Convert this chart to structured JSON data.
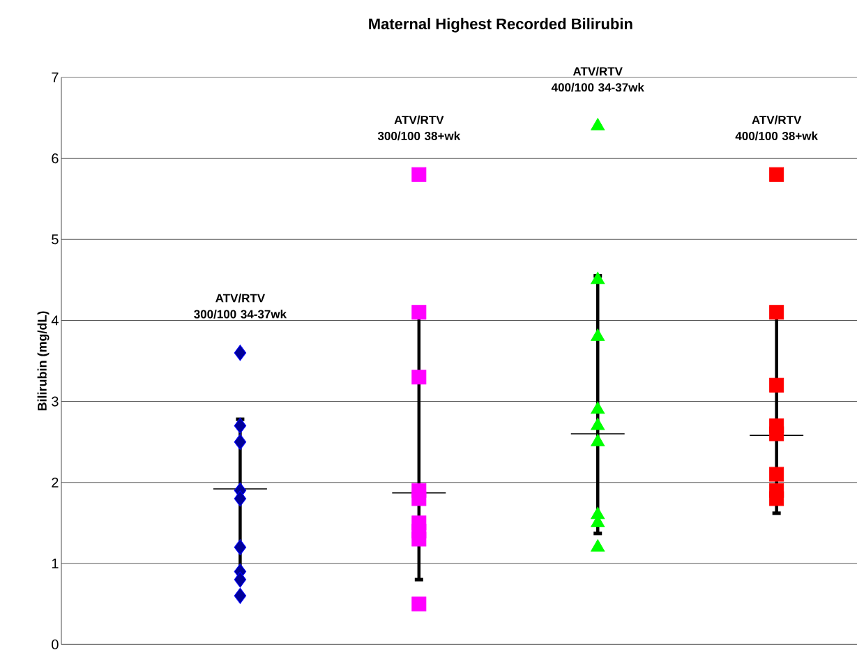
{
  "chart_data": {
    "type": "scatter",
    "title": "Maternal Highest Recorded Bilirubin",
    "ylabel": "Bilirubin (mg/dL)",
    "categories": [
      "ATV/RTV 300/100 34-37wk",
      "ATV/RTV 300/100 38+wk",
      "ATV/RTV 400/100 34-37wk",
      "ATV/RTV 400/100 38+wk"
    ],
    "series": [
      {
        "x": [
          "ATV/RTV 300/100 34-37wk",
          "ATV/RTV 300/100 34-37wk",
          "ATV/RTV 300/100 34-37wk",
          "ATV/RTV 300/100 34-37wk",
          "ATV/RTV 300/100 34-37wk",
          "ATV/RTV 300/100 34-37wk",
          "ATV/RTV 300/100 34-37wk",
          "ATV/RTV 300/100 34-37wk",
          "ATV/RTV 300/100 34-37wk"
        ],
        "values": [
          3.6,
          2.7,
          2.5,
          1.9,
          1.8,
          1.2,
          0.9,
          0.8,
          0.6
        ],
        "color": "#000099",
        "marker": "diamond"
      },
      {
        "x": [
          "ATV/RTV 300/100 38+wk",
          "ATV/RTV 300/100 38+wk",
          "ATV/RTV 300/100 38+wk",
          "ATV/RTV 300/100 38+wk",
          "ATV/RTV 300/100 38+wk",
          "ATV/RTV 300/100 38+wk",
          "ATV/RTV 300/100 38+wk",
          "ATV/RTV 300/100 38+wk",
          "ATV/RTV 300/100 38+wk"
        ],
        "values": [
          5.8,
          4.1,
          3.3,
          1.9,
          1.8,
          1.5,
          1.4,
          1.3,
          0.5
        ],
        "color": "#ff00ff",
        "marker": "square"
      },
      {
        "x": [
          "ATV/RTV 400/100 34-37wk",
          "ATV/RTV 400/100 34-37wk",
          "ATV/RTV 400/100 34-37wk",
          "ATV/RTV 400/100 34-37wk",
          "ATV/RTV 400/100 34-37wk",
          "ATV/RTV 400/100 34-37wk",
          "ATV/RTV 400/100 34-37wk",
          "ATV/RTV 400/100 34-37wk",
          "ATV/RTV 400/100 34-37wk"
        ],
        "values": [
          6.4,
          4.5,
          3.8,
          2.9,
          2.7,
          2.5,
          1.6,
          1.5,
          1.2
        ],
        "color": "#00ff00",
        "marker": "triangle"
      },
      {
        "x": [
          "ATV/RTV 400/100 38+wk",
          "ATV/RTV 400/100 38+wk",
          "ATV/RTV 400/100 38+wk",
          "ATV/RTV 400/100 38+wk",
          "ATV/RTV 400/100 38+wk",
          "ATV/RTV 400/100 38+wk",
          "ATV/RTV 400/100 38+wk",
          "ATV/RTV 400/100 38+wk"
        ],
        "values": [
          5.8,
          4.1,
          3.2,
          2.7,
          2.6,
          2.1,
          1.9,
          1.8
        ],
        "color": "#ff0000",
        "marker": "square"
      },
      {
        "type": "box",
        "color": "#000000",
        "boxes": [
          {
            "low": 0.9,
            "q1": 1.92,
            "median": 1.92,
            "q3": 1.92,
            "high": 2.78
          },
          {
            "low": 0.8,
            "q1": 1.87,
            "median": 1.87,
            "q3": 1.87,
            "high": 4.05
          },
          {
            "low": 1.37,
            "q1": 2.6,
            "median": 2.6,
            "q3": 2.6,
            "high": 4.55
          },
          {
            "low": 1.62,
            "q1": 2.58,
            "median": 2.58,
            "q3": 2.58,
            "high": 4.05
          }
        ]
      }
    ],
    "ylim": [
      0,
      7
    ],
    "yticks": [
      0,
      1,
      2,
      3,
      4,
      5,
      6,
      7
    ],
    "grid": "y"
  }
}
